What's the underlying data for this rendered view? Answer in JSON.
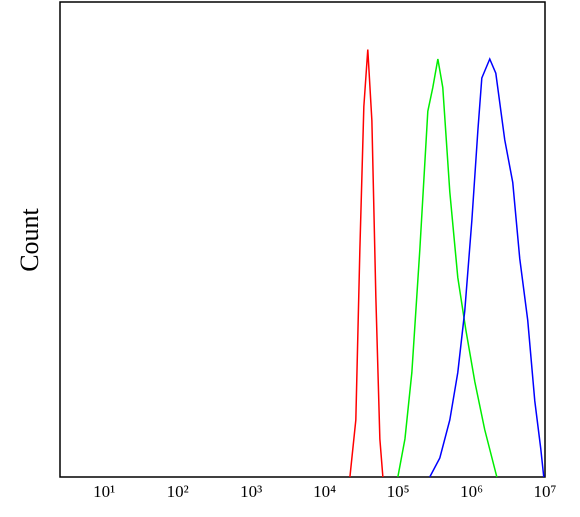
{
  "chart_data": {
    "type": "line",
    "ylabel": "Count",
    "xscale": "log",
    "xlim": [
      2.5,
      10000000
    ],
    "ylim": [
      0,
      100
    ],
    "xticks": [
      {
        "value": 10,
        "label": "10¹"
      },
      {
        "value": 100,
        "label": "10²"
      },
      {
        "value": 1000,
        "label": "10³"
      },
      {
        "value": 10000,
        "label": "10⁴"
      },
      {
        "value": 100000,
        "label": "10⁵"
      },
      {
        "value": 1000000,
        "label": "10⁶"
      },
      {
        "value": 10000000,
        "label": "10⁷"
      }
    ],
    "series": [
      {
        "color": "#ff0000",
        "x": [
          22100,
          26600,
          30200,
          34200,
          38700,
          44000,
          49800,
          56500,
          62100
        ],
        "values": [
          0,
          12,
          48,
          78,
          90,
          75,
          38,
          8,
          0
        ]
      },
      {
        "color": "#00ee00",
        "x": [
          99300,
          124000,
          154000,
          198000,
          254000,
          297000,
          348000,
          406000,
          506000,
          650000,
          836000,
          1110000,
          1510000,
          2210000
        ],
        "values": [
          0,
          8,
          22,
          48,
          77,
          82,
          88,
          82,
          60,
          42,
          31,
          20,
          10,
          0
        ]
      },
      {
        "color": "#0000ff",
        "x": [
          270000,
          370000,
          506000,
          650000,
          809000,
          1010000,
          1220000,
          1380000,
          1770000,
          2140000,
          2830000,
          3640000,
          4530000,
          5820000,
          7260000,
          8750000,
          9620000
        ],
        "values": [
          0,
          4,
          12,
          22,
          35,
          54,
          73,
          84,
          88,
          85,
          71,
          62,
          46,
          33,
          16,
          6,
          0
        ]
      }
    ]
  }
}
